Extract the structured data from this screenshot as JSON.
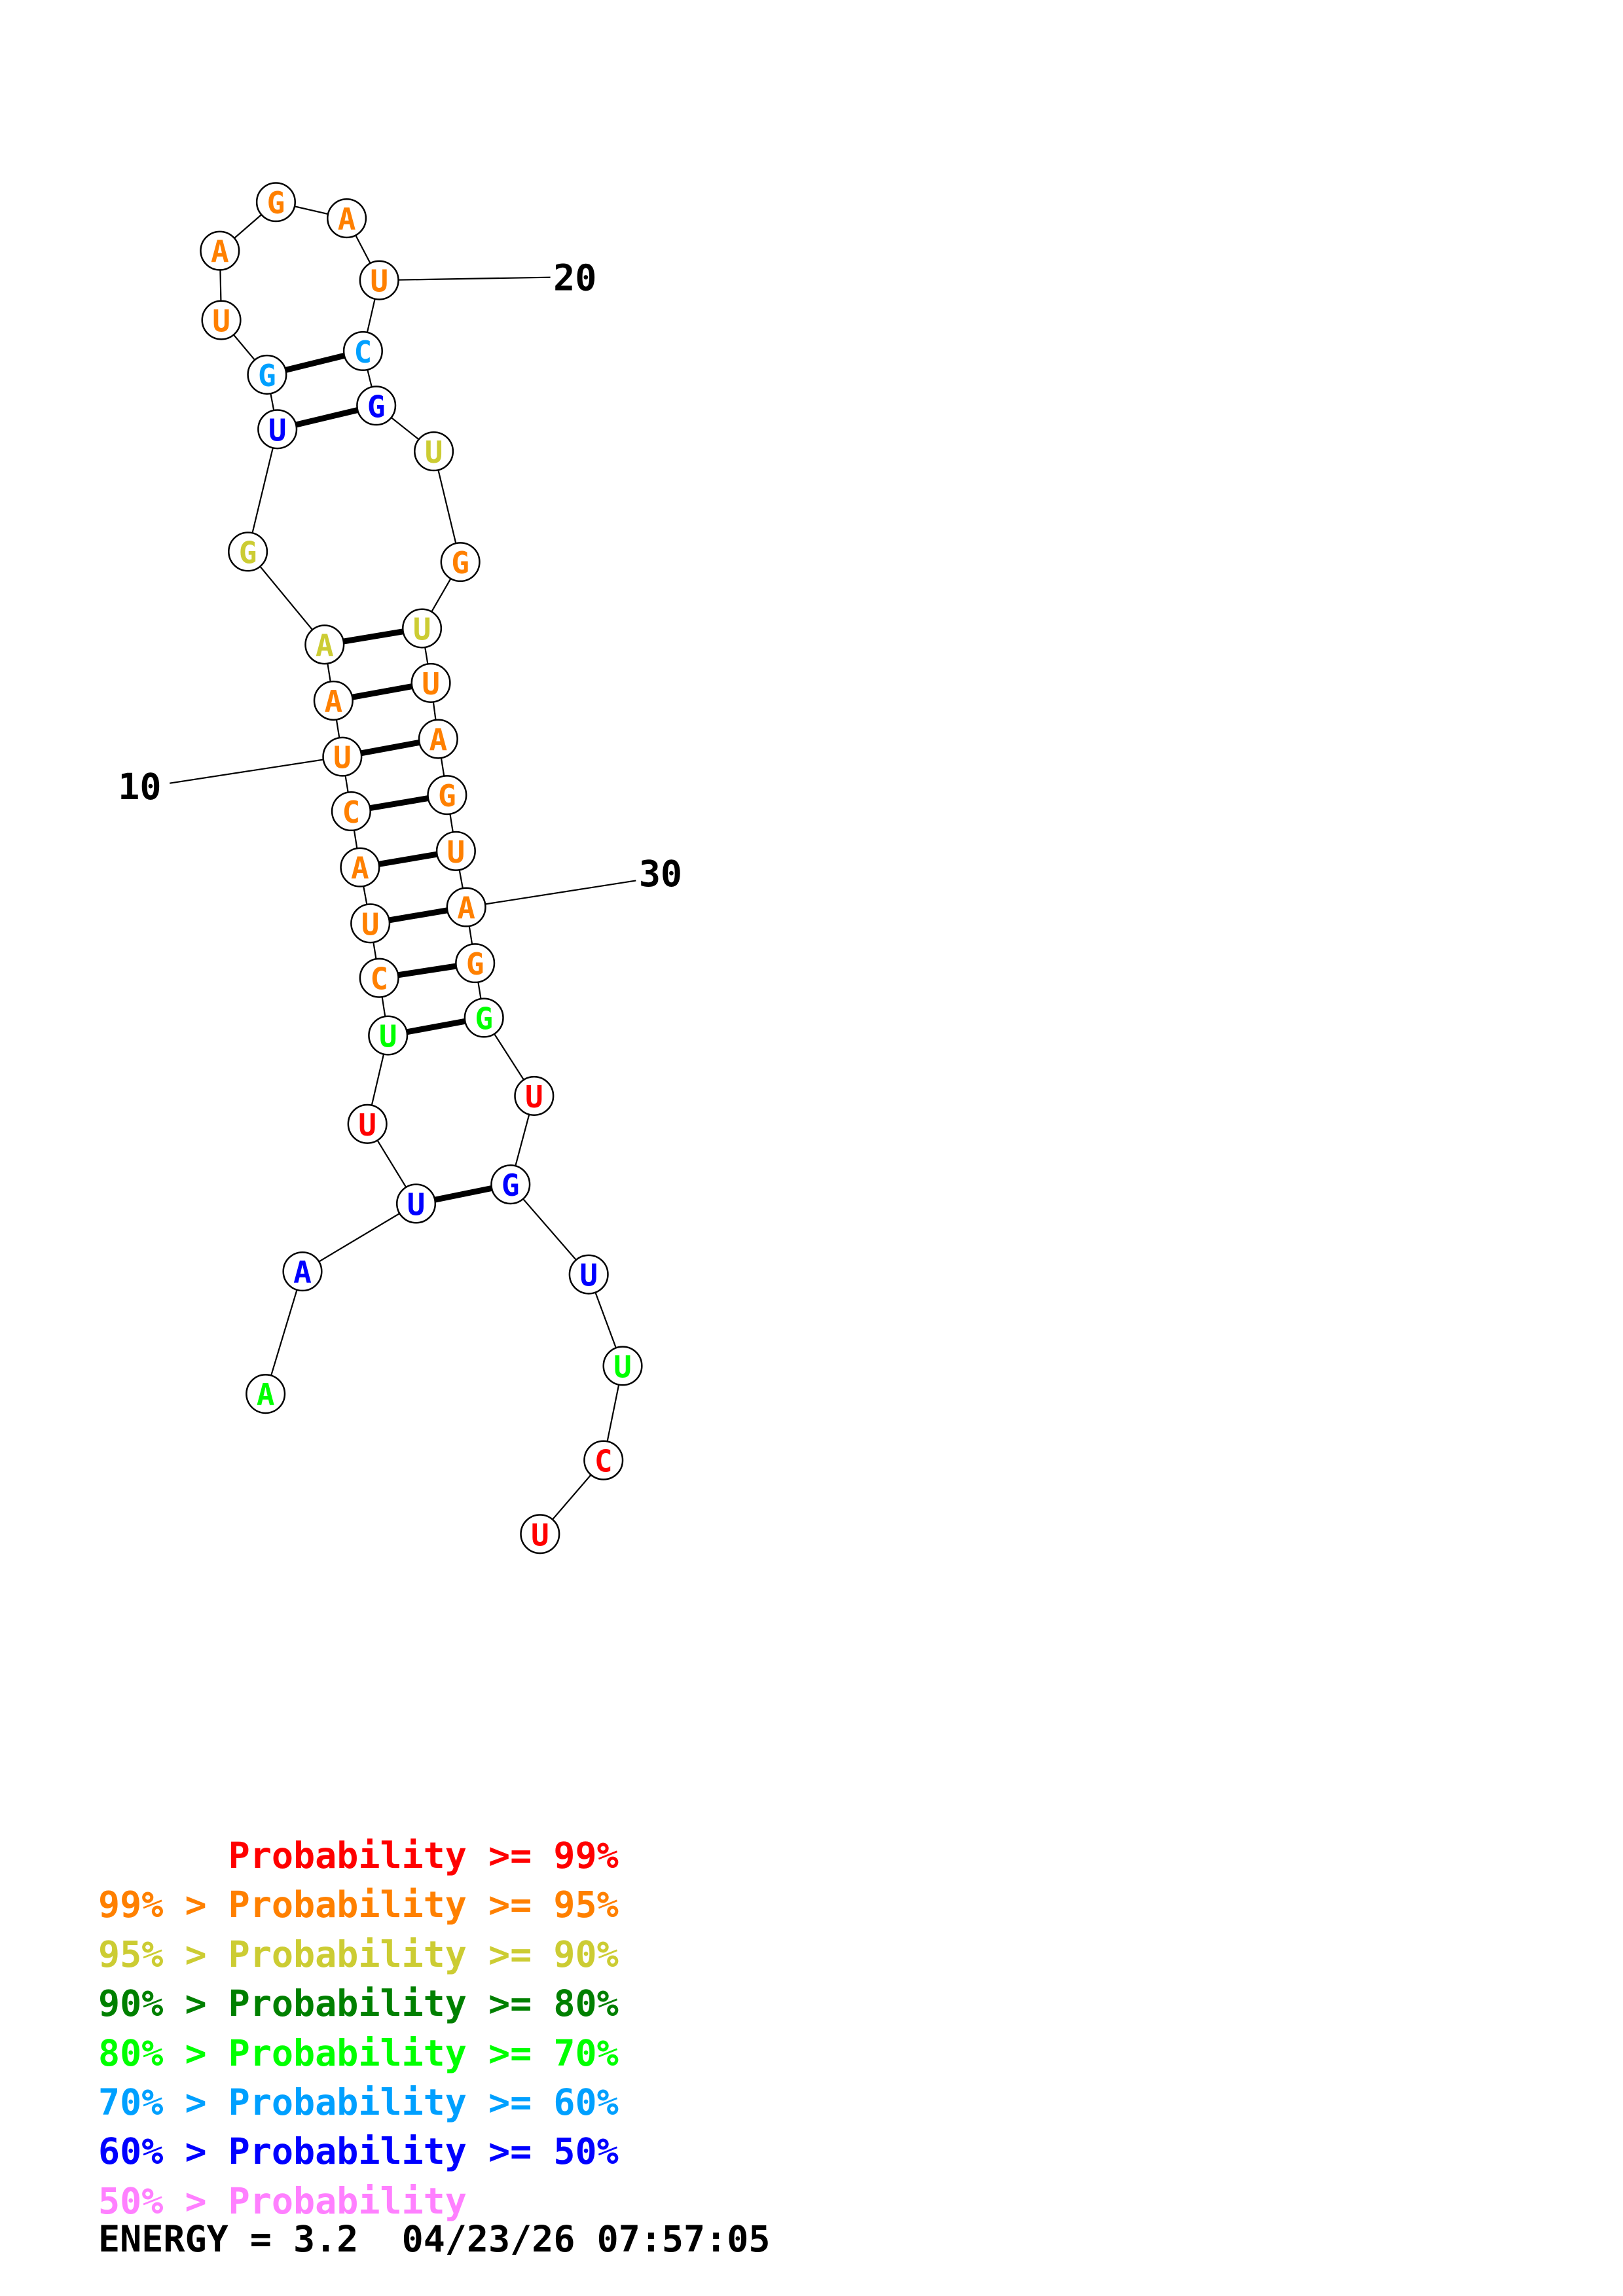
{
  "structure": {
    "nucleotides": [
      {
        "n": 1,
        "base": "A",
        "color": "#00ff00"
      },
      {
        "n": 2,
        "base": "A",
        "color": "#0000ff"
      },
      {
        "n": 3,
        "base": "U",
        "color": "#0000ff"
      },
      {
        "n": 4,
        "base": "U",
        "color": "#ff0000"
      },
      {
        "n": 5,
        "base": "U",
        "color": "#00ff00"
      },
      {
        "n": 6,
        "base": "C",
        "color": "#ff8000"
      },
      {
        "n": 7,
        "base": "U",
        "color": "#ff8000"
      },
      {
        "n": 8,
        "base": "A",
        "color": "#ff8000"
      },
      {
        "n": 9,
        "base": "C",
        "color": "#ff8000"
      },
      {
        "n": 10,
        "base": "U",
        "color": "#ff8000"
      },
      {
        "n": 11,
        "base": "A",
        "color": "#ff8000"
      },
      {
        "n": 12,
        "base": "A",
        "color": "#cccc33"
      },
      {
        "n": 13,
        "base": "G",
        "color": "#cccc33"
      },
      {
        "n": 14,
        "base": "U",
        "color": "#0000ff"
      },
      {
        "n": 15,
        "base": "G",
        "color": "#00a0ff"
      },
      {
        "n": 16,
        "base": "U",
        "color": "#ff8000"
      },
      {
        "n": 17,
        "base": "A",
        "color": "#ff8000"
      },
      {
        "n": 18,
        "base": "G",
        "color": "#ff8000"
      },
      {
        "n": 19,
        "base": "A",
        "color": "#ff8000"
      },
      {
        "n": 20,
        "base": "U",
        "color": "#ff8000"
      },
      {
        "n": 21,
        "base": "C",
        "color": "#00a0ff"
      },
      {
        "n": 22,
        "base": "G",
        "color": "#0000ff"
      },
      {
        "n": 23,
        "base": "U",
        "color": "#cccc33"
      },
      {
        "n": 24,
        "base": "G",
        "color": "#ff8000"
      },
      {
        "n": 25,
        "base": "U",
        "color": "#cccc33"
      },
      {
        "n": 26,
        "base": "U",
        "color": "#ff8000"
      },
      {
        "n": 27,
        "base": "A",
        "color": "#ff8000"
      },
      {
        "n": 28,
        "base": "G",
        "color": "#ff8000"
      },
      {
        "n": 29,
        "base": "U",
        "color": "#ff8000"
      },
      {
        "n": 30,
        "base": "A",
        "color": "#ff8000"
      },
      {
        "n": 31,
        "base": "G",
        "color": "#ff8000"
      },
      {
        "n": 32,
        "base": "G",
        "color": "#00ff00"
      },
      {
        "n": 33,
        "base": "U",
        "color": "#ff0000"
      },
      {
        "n": 34,
        "base": "G",
        "color": "#0000ff"
      },
      {
        "n": 35,
        "base": "U",
        "color": "#0000ff"
      },
      {
        "n": 36,
        "base": "U",
        "color": "#00ff00"
      },
      {
        "n": 37,
        "base": "C",
        "color": "#ff0000"
      },
      {
        "n": 38,
        "base": "U",
        "color": "#ff0000"
      }
    ],
    "pairs": [
      [
        3,
        34
      ],
      [
        5,
        32
      ],
      [
        6,
        31
      ],
      [
        7,
        30
      ],
      [
        8,
        29
      ],
      [
        9,
        28
      ],
      [
        10,
        27
      ],
      [
        11,
        26
      ],
      [
        12,
        25
      ],
      [
        14,
        22
      ],
      [
        15,
        21
      ]
    ],
    "number_labels": [
      {
        "text": "10",
        "nt": 10
      },
      {
        "text": "20",
        "nt": 20
      },
      {
        "text": "30",
        "nt": 30
      }
    ]
  },
  "legend": [
    {
      "prefix": "",
      "text": "Probability >= 99%",
      "color": "#ff0000"
    },
    {
      "prefix": "99% > ",
      "text": "Probability >= 95%",
      "color": "#ff8000"
    },
    {
      "prefix": "95% > ",
      "text": "Probability >= 90%",
      "color": "#cccc33"
    },
    {
      "prefix": "90% > ",
      "text": "Probability >= 80%",
      "color": "#008000"
    },
    {
      "prefix": "80% > ",
      "text": "Probability >= 70%",
      "color": "#00ff00"
    },
    {
      "prefix": "70% > ",
      "text": "Probability >= 60%",
      "color": "#00a0ff"
    },
    {
      "prefix": "60% > ",
      "text": "Probability >= 50%",
      "color": "#0000ff"
    },
    {
      "prefix": "50% > ",
      "text": "Probability",
      "color": "#ff80ff"
    }
  ],
  "footer": {
    "energy": "ENERGY = 3.2  04/23/26 07:57:05"
  }
}
